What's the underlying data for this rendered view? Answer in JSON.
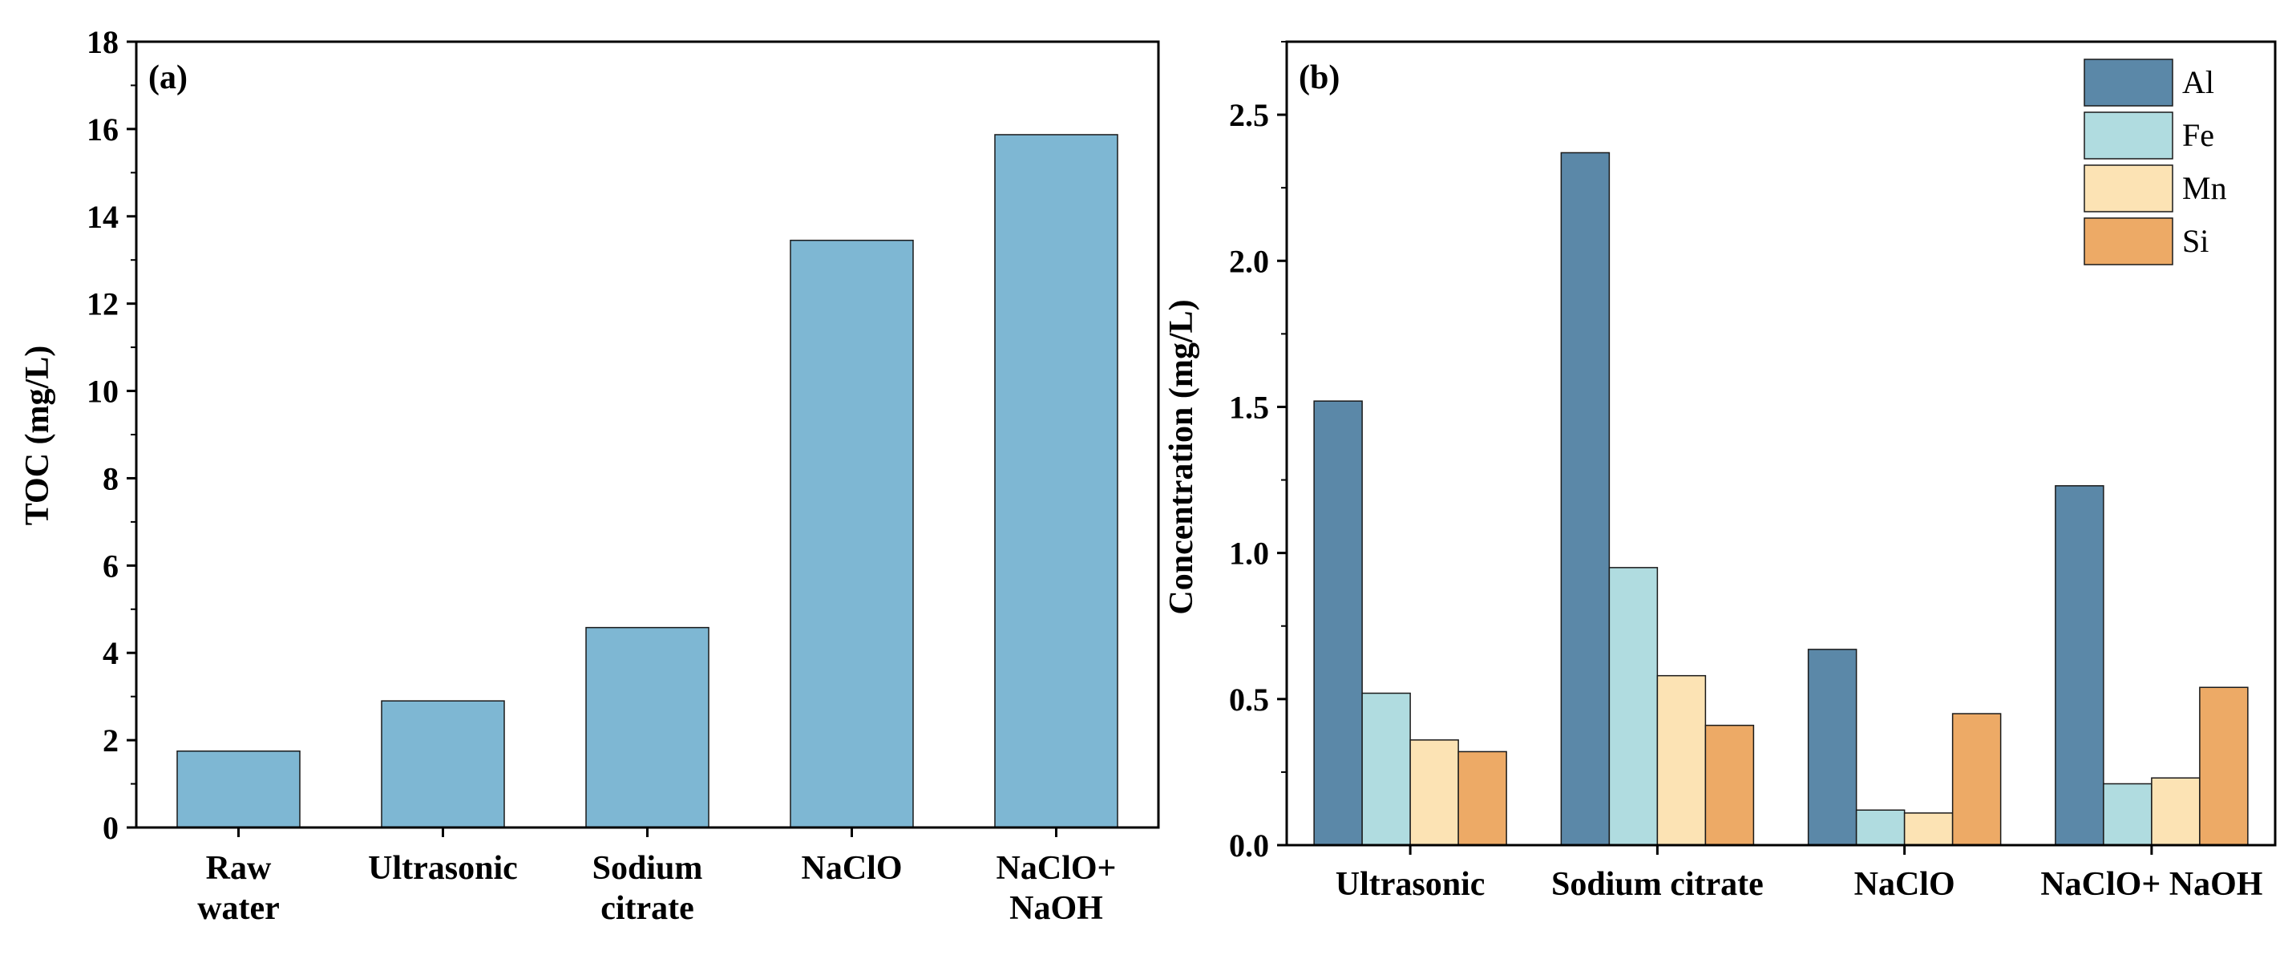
{
  "chart_data": [
    {
      "panel": "(a)",
      "type": "bar",
      "title": "",
      "xlabel": "",
      "ylabel": "TOC (mg/L)",
      "categories": [
        [
          "Raw",
          "water"
        ],
        [
          "Ultrasonic"
        ],
        [
          "Sodium",
          "citrate"
        ],
        [
          "NaClO"
        ],
        [
          "NaClO+",
          "NaOH"
        ]
      ],
      "values": [
        1.75,
        2.9,
        4.58,
        13.45,
        15.87
      ],
      "ylim": [
        0,
        18
      ],
      "yticks": [
        "0",
        "2",
        "4",
        "6",
        "8",
        "10",
        "12",
        "14",
        "16",
        "18"
      ],
      "color": "#7EB7D3",
      "grid": false
    },
    {
      "panel": "(b)",
      "type": "bar",
      "title": "",
      "xlabel": "",
      "ylabel": "Concentration (mg/L)",
      "categories": [
        "Ultrasonic",
        "Sodium citrate",
        "NaClO",
        "NaClO+ NaOH"
      ],
      "series": [
        {
          "name": "Al",
          "color": "#5B88A8",
          "values": [
            1.52,
            2.37,
            0.67,
            1.23
          ]
        },
        {
          "name": "Fe",
          "color": "#B0DCE0",
          "values": [
            0.52,
            0.95,
            0.12,
            0.21
          ]
        },
        {
          "name": "Mn",
          "color": "#FCE3B4",
          "values": [
            0.36,
            0.58,
            0.11,
            0.23
          ]
        },
        {
          "name": "Si",
          "color": "#EDAA66",
          "values": [
            0.32,
            0.41,
            0.45,
            0.54
          ]
        }
      ],
      "ylim": [
        0,
        2.75
      ],
      "yticks": [
        "0.0",
        "0.5",
        "1.0",
        "1.5",
        "2.0",
        "2.5"
      ],
      "legend_position": "top-right",
      "grid": false
    }
  ]
}
